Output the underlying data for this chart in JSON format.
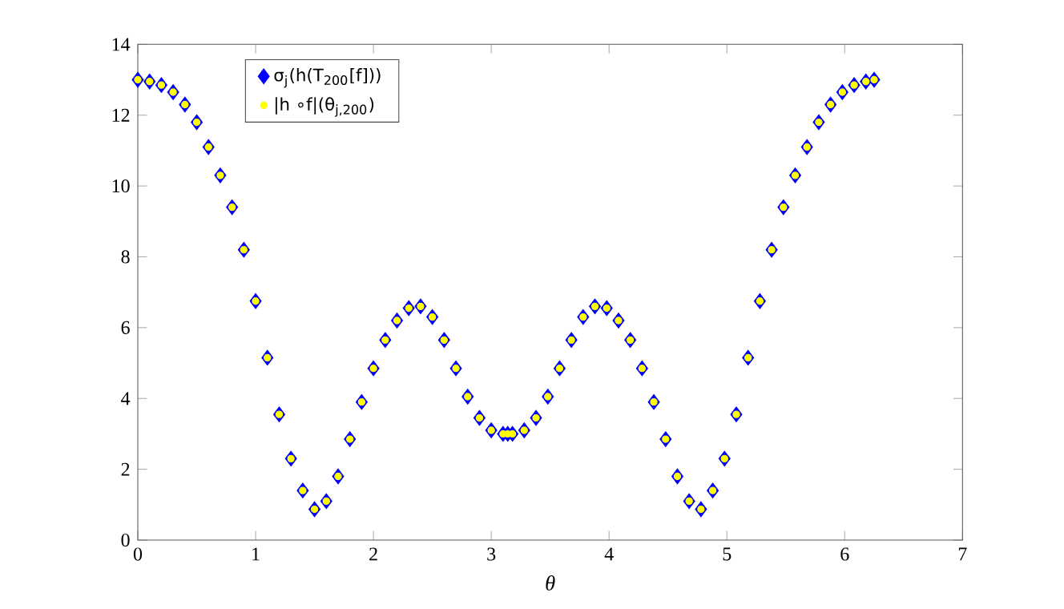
{
  "chart_data": {
    "type": "scatter",
    "xlabel": "θ",
    "xlim": [
      0,
      7
    ],
    "xticks": [
      0,
      1,
      2,
      3,
      4,
      5,
      6,
      7
    ],
    "ylim": [
      0,
      14
    ],
    "yticks": [
      0,
      2,
      4,
      6,
      8,
      10,
      12,
      14
    ],
    "legend": "top left",
    "grid": false,
    "x": [
      0,
      0.1,
      0.2,
      0.3,
      0.4,
      0.5,
      0.6,
      0.7,
      0.8,
      0.9,
      1.0,
      1.1,
      1.2,
      1.3,
      1.4,
      1.5,
      1.6,
      1.7,
      1.8,
      1.9,
      2.0,
      2.1,
      2.2,
      2.3,
      2.4,
      2.5,
      2.6,
      2.7,
      2.8,
      2.9,
      3.0,
      3.1,
      3.14,
      3.18,
      3.28,
      3.38,
      3.48,
      3.58,
      3.68,
      3.78,
      3.88,
      3.98,
      4.08,
      4.18,
      4.28,
      4.38,
      4.48,
      4.58,
      4.68,
      4.78,
      4.88,
      4.98,
      5.08,
      5.18,
      5.28,
      5.38,
      5.48,
      5.58,
      5.68,
      5.78,
      5.88,
      5.98,
      6.08,
      6.18,
      6.25
    ],
    "series": [
      {
        "name": "σ$_{j}$(h(T$_{200}$[f]))",
        "color": "#0000ff",
        "marker": "diamond",
        "values": [
          13.0,
          12.95,
          12.85,
          12.65,
          12.3,
          11.8,
          11.1,
          10.3,
          9.4,
          8.2,
          6.75,
          5.15,
          3.55,
          2.3,
          1.4,
          0.87,
          1.1,
          1.8,
          2.85,
          3.9,
          4.85,
          5.65,
          6.2,
          6.55,
          6.6,
          6.3,
          5.65,
          4.85,
          4.05,
          3.45,
          3.1,
          3.0,
          3.0,
          3.0,
          3.1,
          3.45,
          4.05,
          4.85,
          5.65,
          6.3,
          6.6,
          6.55,
          6.2,
          5.65,
          4.85,
          3.9,
          2.85,
          1.8,
          1.1,
          0.87,
          1.4,
          2.3,
          3.55,
          5.15,
          6.75,
          8.2,
          9.4,
          10.3,
          11.1,
          11.8,
          12.3,
          12.65,
          12.85,
          12.95,
          13.0
        ]
      },
      {
        "name": "|h ∘f|(θ$_{j,200}$)",
        "color": "#ffff00",
        "marker": "circle",
        "values": [
          13.0,
          12.95,
          12.85,
          12.65,
          12.3,
          11.8,
          11.1,
          10.3,
          9.4,
          8.2,
          6.75,
          5.15,
          3.55,
          2.3,
          1.4,
          0.87,
          1.1,
          1.8,
          2.85,
          3.9,
          4.85,
          5.65,
          6.2,
          6.55,
          6.6,
          6.3,
          5.65,
          4.85,
          4.05,
          3.45,
          3.1,
          3.0,
          3.0,
          3.0,
          3.1,
          3.45,
          4.05,
          4.85,
          5.65,
          6.3,
          6.6,
          6.55,
          6.2,
          5.65,
          4.85,
          3.9,
          2.85,
          1.8,
          1.1,
          0.87,
          1.4,
          2.3,
          3.55,
          5.15,
          6.75,
          8.2,
          9.4,
          10.3,
          11.1,
          11.8,
          12.3,
          12.65,
          12.85,
          12.95,
          13.0
        ]
      }
    ]
  }
}
